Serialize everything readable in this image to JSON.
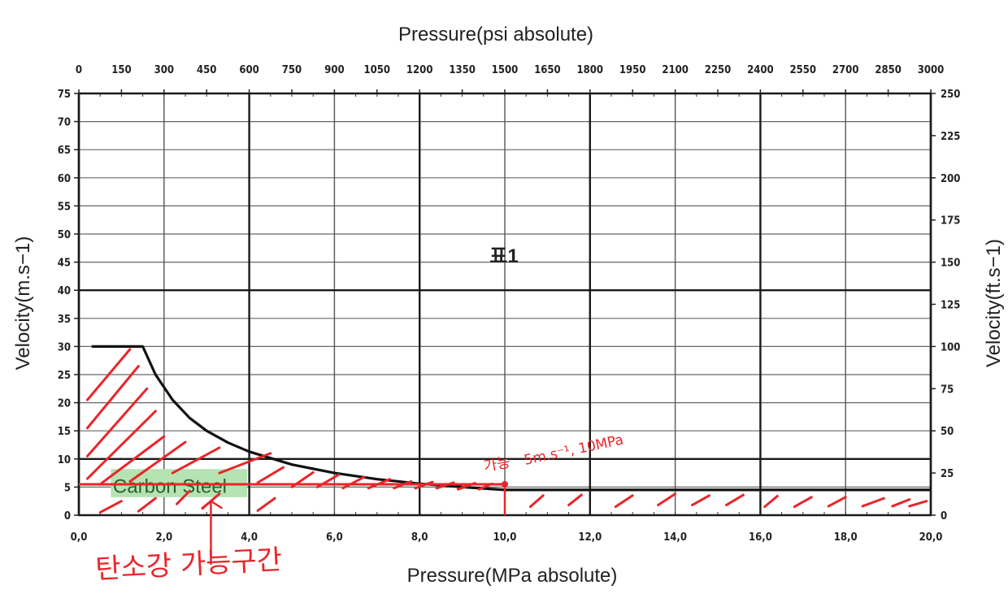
{
  "chart_data": {
    "type": "line",
    "title": "표1",
    "xlabel": "Pressure(MPa absolute)",
    "x2label": "Pressure(psi absolute)",
    "ylabel": "Velocity(m.s−1)",
    "y2label": "Velocity(ft.s−1)",
    "xlim": [
      0,
      20
    ],
    "ylim": [
      0,
      75
    ],
    "x2lim": [
      0,
      3000
    ],
    "y2lim": [
      0,
      250
    ],
    "x_ticks": [
      "0,0",
      "2,0",
      "4,0",
      "6,0",
      "8,0",
      "10,0",
      "12,0",
      "14,0",
      "16,0",
      "18,0",
      "20,0"
    ],
    "y_ticks": [
      "0",
      "5",
      "10",
      "15",
      "20",
      "25",
      "30",
      "35",
      "40",
      "45",
      "50",
      "55",
      "60",
      "65",
      "70",
      "75"
    ],
    "x2_ticks": [
      "0",
      "150",
      "300",
      "450",
      "600",
      "750",
      "900",
      "1050",
      "1200",
      "1350",
      "1500",
      "1650",
      "1800",
      "1950",
      "2100",
      "2250",
      "2400",
      "2550",
      "2700",
      "2850",
      "3000"
    ],
    "y2_ticks": [
      "0",
      "25",
      "50",
      "75",
      "100",
      "125",
      "150",
      "175",
      "200",
      "225",
      "250"
    ],
    "grid": true,
    "series": [
      {
        "color": "#111111",
        "x": [
          0.3,
          1.5,
          1.8,
          2.2,
          2.6,
          3.0,
          3.5,
          4.0,
          5.0,
          6.0,
          7.0,
          8.0,
          9.0,
          10.0,
          11.0,
          12.0,
          14.0,
          16.0,
          18.0,
          20.0
        ],
        "y": [
          30,
          30,
          25,
          20.5,
          17.3,
          15,
          12.9,
          11.3,
          9,
          7.5,
          6.4,
          5.6,
          5,
          4.5,
          4.5,
          4.5,
          4.5,
          4.5,
          4.5,
          4.5
        ]
      }
    ],
    "annotations": [
      {
        "text": "Carbon Steel",
        "x": 2.0,
        "y": 5.5,
        "background": "#b5e3b2"
      },
      {
        "text": "5m.s",
        "x": 10.0,
        "y": 5.5,
        "color": "#e8262a"
      }
    ]
  },
  "handwriting": {
    "label_region": "탄소강 가능구간",
    "label_point": "5m.s⁻¹, 10MPa",
    "label_possible": "가능",
    "marker_point": {
      "x": 10.0,
      "y": 5.5
    },
    "color": "#e8262a"
  }
}
